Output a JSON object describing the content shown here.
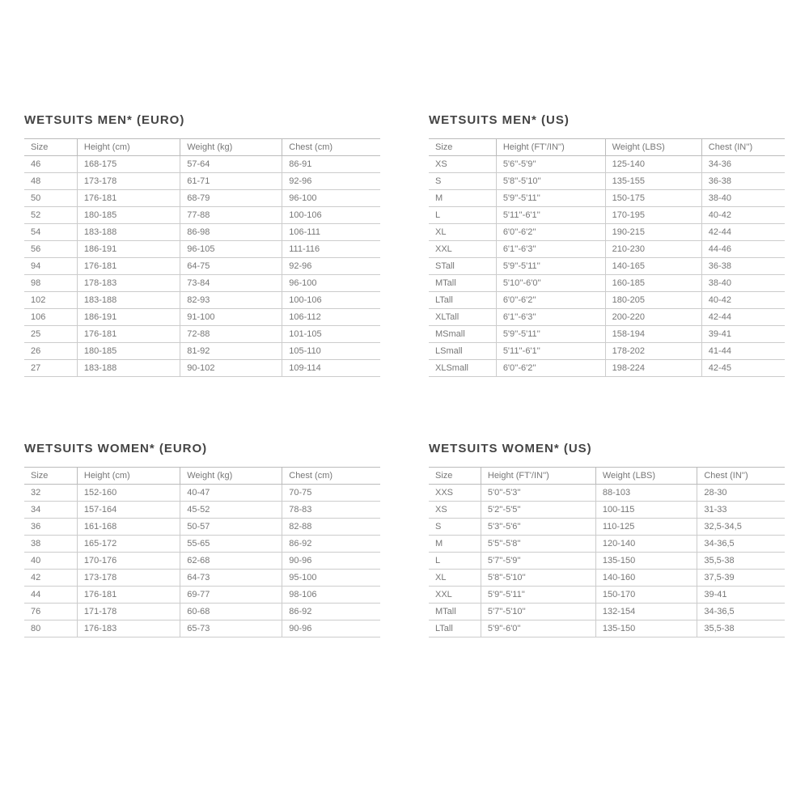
{
  "tables": [
    {
      "title": "WETSUITS MEN* (EURO)",
      "columns": [
        "Size",
        "Height (cm)",
        "Weight (kg)",
        "Chest (cm)"
      ],
      "rows": [
        [
          "46",
          "168-175",
          "57-64",
          "86-91"
        ],
        [
          "48",
          "173-178",
          "61-71",
          "92-96"
        ],
        [
          "50",
          "176-181",
          "68-79",
          "96-100"
        ],
        [
          "52",
          "180-185",
          "77-88",
          "100-106"
        ],
        [
          "54",
          "183-188",
          "86-98",
          "106-111"
        ],
        [
          "56",
          "186-191",
          "96-105",
          "111-116"
        ],
        [
          "94",
          "176-181",
          "64-75",
          "92-96"
        ],
        [
          "98",
          "178-183",
          "73-84",
          "96-100"
        ],
        [
          "102",
          "183-188",
          "82-93",
          "100-106"
        ],
        [
          "106",
          "186-191",
          "91-100",
          "106-112"
        ],
        [
          "25",
          "176-181",
          "72-88",
          "101-105"
        ],
        [
          "26",
          "180-185",
          "81-92",
          "105-110"
        ],
        [
          "27",
          "183-188",
          "90-102",
          "109-114"
        ]
      ]
    },
    {
      "title": "WETSUITS MEN* (US)",
      "columns": [
        "Size",
        "Height (FT'/IN'')",
        "Weight (LBS)",
        "Chest (IN'')"
      ],
      "rows": [
        [
          "XS",
          "5'6''-5'9''",
          "125-140",
          "34-36"
        ],
        [
          "S",
          "5'8''-5'10''",
          "135-155",
          "36-38"
        ],
        [
          "M",
          "5'9''-5'11''",
          "150-175",
          "38-40"
        ],
        [
          "L",
          "5'11''-6'1''",
          "170-195",
          "40-42"
        ],
        [
          "XL",
          "6'0''-6'2''",
          "190-215",
          "42-44"
        ],
        [
          "XXL",
          "6'1''-6'3''",
          "210-230",
          "44-46"
        ],
        [
          "STall",
          "5'9''-5'11''",
          "140-165",
          "36-38"
        ],
        [
          "MTall",
          "5'10''-6'0''",
          "160-185",
          "38-40"
        ],
        [
          "LTall",
          "6'0''-6'2''",
          "180-205",
          "40-42"
        ],
        [
          "XLTall",
          "6'1''-6'3''",
          "200-220",
          "42-44"
        ],
        [
          "MSmall",
          "5'9''-5'11''",
          "158-194",
          "39-41"
        ],
        [
          "LSmall",
          "5'11''-6'1''",
          "178-202",
          "41-44"
        ],
        [
          "XLSmall",
          "6'0''-6'2''",
          "198-224",
          "42-45"
        ]
      ]
    },
    {
      "title": "WETSUITS WOMEN* (EURO)",
      "columns": [
        "Size",
        "Height (cm)",
        "Weight (kg)",
        "Chest (cm)"
      ],
      "rows": [
        [
          "32",
          "152-160",
          "40-47",
          "70-75"
        ],
        [
          "34",
          "157-164",
          "45-52",
          "78-83"
        ],
        [
          "36",
          "161-168",
          "50-57",
          "82-88"
        ],
        [
          "38",
          "165-172",
          "55-65",
          "86-92"
        ],
        [
          "40",
          "170-176",
          "62-68",
          "90-96"
        ],
        [
          "42",
          "173-178",
          "64-73",
          "95-100"
        ],
        [
          "44",
          "176-181",
          "69-77",
          "98-106"
        ],
        [
          "76",
          "171-178",
          "60-68",
          "86-92"
        ],
        [
          "80",
          "176-183",
          "65-73",
          "90-96"
        ]
      ]
    },
    {
      "title": "WETSUITS WOMEN* (US)",
      "columns": [
        "Size",
        "Height (FT'/IN'')",
        "Weight (LBS)",
        "Chest (IN'')"
      ],
      "rows": [
        [
          "XXS",
          "5'0''-5'3''",
          "88-103",
          "28-30"
        ],
        [
          "XS",
          "5'2''-5'5''",
          "100-115",
          "31-33"
        ],
        [
          "S",
          "5'3''-5'6''",
          "110-125",
          "32,5-34,5"
        ],
        [
          "M",
          "5'5''-5'8''",
          "120-140",
          "34-36,5"
        ],
        [
          "L",
          "5'7''-5'9''",
          "135-150",
          "35,5-38"
        ],
        [
          "XL",
          "5'8''-5'10''",
          "140-160",
          "37,5-39"
        ],
        [
          "XXL",
          "5'9''-5'11''",
          "150-170",
          "39-41"
        ],
        [
          "MTall",
          "5'7''-5'10''",
          "132-154",
          "34-36,5"
        ],
        [
          "LTall",
          "5'9''-6'0''",
          "135-150",
          "35,5-38"
        ]
      ]
    }
  ]
}
